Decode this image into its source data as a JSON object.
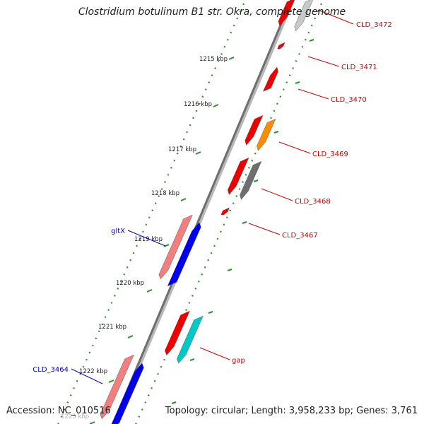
{
  "title": "Clostridium botulinum B1 str. Okra, complete genome",
  "footer": {
    "accession": "Accession: NC_010516",
    "topology": "Topology: circular; Length: 3,958,233 bp; Genes: 3,761"
  },
  "ticks": [
    "1215 kbp",
    "1216 kbp",
    "1217 kbp",
    "1218 kbp",
    "1219 kbp",
    "1220 kbp",
    "1221 kbp",
    "1222 kbp",
    "1223 kbp"
  ],
  "gene_labels": [
    {
      "text": "CLD_3472",
      "color": "#cc0000"
    },
    {
      "text": "CLD_3471",
      "color": "#cc0000"
    },
    {
      "text": "CLD_3470",
      "color": "#cc0000"
    },
    {
      "text": "CLD_3469",
      "color": "#cc0000"
    },
    {
      "text": "CLD_3468",
      "color": "#cc0000"
    },
    {
      "text": "CLD_3467",
      "color": "#cc0000"
    },
    {
      "text": "gap",
      "color": "#cc0000"
    },
    {
      "text": "gltX",
      "color": "#0000cc"
    },
    {
      "text": "CLD_3464",
      "color": "#0000cc"
    }
  ],
  "colors": {
    "backbone": "#8a8a8a",
    "dotted_ring": "#2e8b2e",
    "tick": "#2e8b2e",
    "cds_red": "#ee0000",
    "cds_pink": "#f08080",
    "cds_blue": "#0000ee",
    "cds_orange": "#ff8c00",
    "cds_gray": "#6e6e6e",
    "cds_lightgray": "#c8c8c8",
    "cds_cyan": "#00c8c8"
  }
}
